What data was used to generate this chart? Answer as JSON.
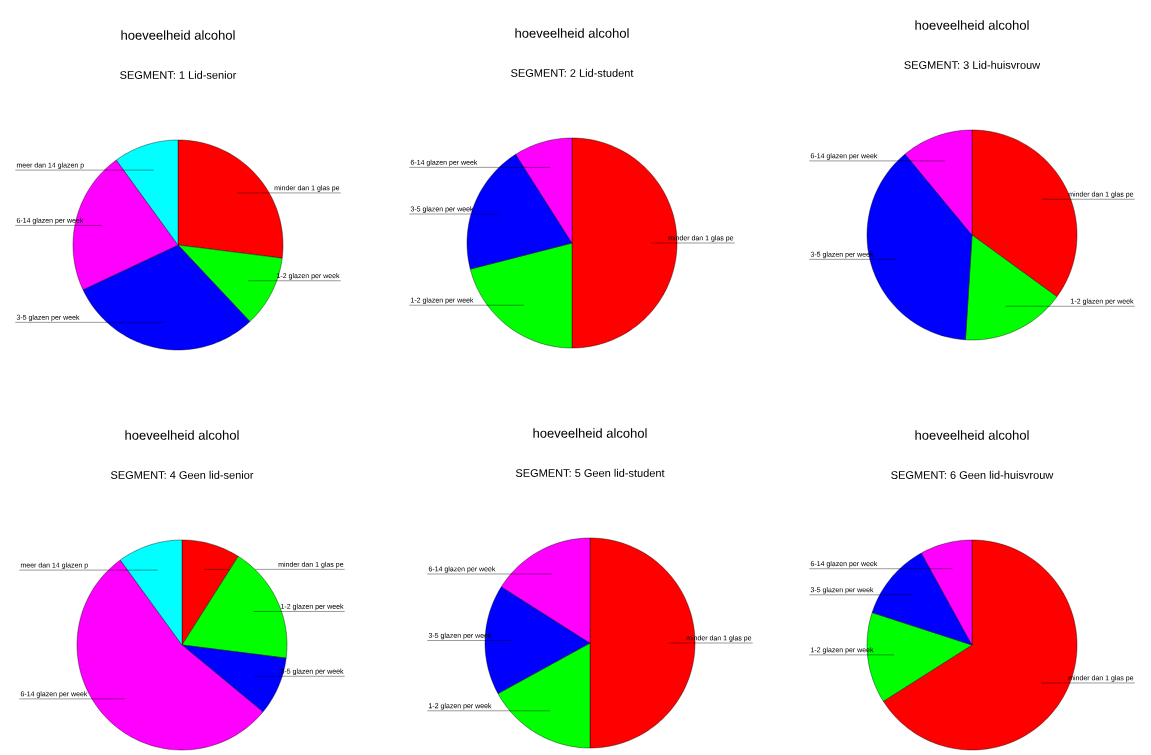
{
  "chart_data": [
    {
      "type": "pie",
      "title": "hoeveelheid alcohol",
      "subtitle": "SEGMENT:   1   Lid-senior",
      "categories": [
        "minder dan 1 glas pe",
        "1-2 glazen per week",
        "3-5 glazen per week",
        "6-14 glazen per week",
        "meer dan 14 glazen p"
      ],
      "values": [
        27,
        11,
        30,
        22,
        10
      ],
      "colors": [
        "#ff0000",
        "#00ff00",
        "#0000ff",
        "#ff00ff",
        "#00ffff"
      ]
    },
    {
      "type": "pie",
      "title": "hoeveelheid alcohol",
      "subtitle": "SEGMENT:   2   Lid-student",
      "categories": [
        "minder dan 1 glas pe",
        "1-2 glazen per week",
        "3-5 glazen per week",
        "6-14 glazen per week"
      ],
      "values": [
        50,
        21,
        20,
        9
      ],
      "colors": [
        "#ff0000",
        "#00ff00",
        "#0000ff",
        "#ff00ff"
      ]
    },
    {
      "type": "pie",
      "title": "hoeveelheid alcohol",
      "subtitle": "SEGMENT:   3   Lid-huisvrouw",
      "categories": [
        "minder dan 1 glas pe",
        "1-2 glazen per week",
        "3-5 glazen per week",
        "6-14 glazen per week"
      ],
      "values": [
        35,
        16,
        38,
        11
      ],
      "colors": [
        "#ff0000",
        "#00ff00",
        "#0000ff",
        "#ff00ff"
      ]
    },
    {
      "type": "pie",
      "title": "hoeveelheid alcohol",
      "subtitle": "SEGMENT:   4   Geen lid-senior",
      "categories": [
        "minder dan 1 glas pe",
        "1-2 glazen per week",
        "3-5 glazen per week",
        "6-14 glazen per week",
        "meer dan 14 glazen p"
      ],
      "values": [
        9,
        18,
        9,
        54,
        10
      ],
      "colors": [
        "#ff0000",
        "#00ff00",
        "#0000ff",
        "#ff00ff",
        "#00ffff"
      ]
    },
    {
      "type": "pie",
      "title": "hoeveelheid alcohol",
      "subtitle": "SEGMENT:   5   Geen lid-student",
      "categories": [
        "minder dan 1 glas pe",
        "1-2 glazen per week",
        "3-5 glazen per week",
        "6-14 glazen per week"
      ],
      "values": [
        50,
        17,
        17,
        16
      ],
      "colors": [
        "#ff0000",
        "#00ff00",
        "#0000ff",
        "#ff00ff"
      ]
    },
    {
      "type": "pie",
      "title": "hoeveelheid alcohol",
      "subtitle": "SEGMENT:   6   Geen lid-huisvrouw",
      "categories": [
        "minder dan 1 glas pe",
        "1-2 glazen per week",
        "3-5 glazen per week",
        "6-14 glazen per week"
      ],
      "values": [
        66,
        14,
        12,
        8
      ],
      "colors": [
        "#ff0000",
        "#00ff00",
        "#0000ff",
        "#ff00ff"
      ]
    }
  ]
}
